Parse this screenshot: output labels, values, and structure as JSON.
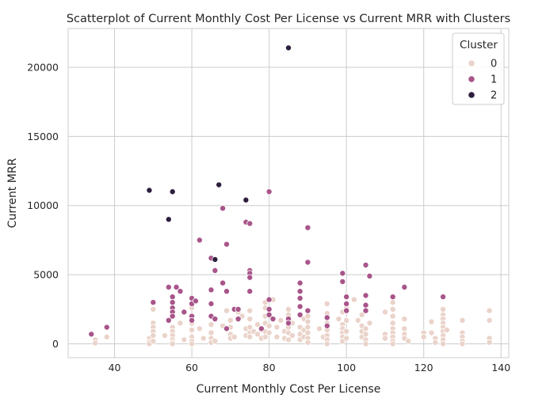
{
  "chart_data": {
    "type": "scatter",
    "title": "Scatterplot of Current Monthly Cost Per License vs Current MRR with Clusters",
    "xlabel": "Current Monthly Cost Per License",
    "ylabel": "Current MRR",
    "xlim": [
      28,
      142
    ],
    "ylim": [
      -1000,
      22800
    ],
    "xticks": [
      40,
      60,
      80,
      100,
      120,
      140
    ],
    "yticks": [
      0,
      5000,
      10000,
      15000,
      20000
    ],
    "xtick_labels": [
      "40",
      "60",
      "80",
      "100",
      "120",
      "140"
    ],
    "ytick_labels": [
      "0",
      "5000",
      "10000",
      "15000",
      "20000"
    ],
    "grid": true,
    "legend": {
      "title": "Cluster",
      "position": "top-right",
      "entries": [
        "0",
        "1",
        "2"
      ]
    },
    "colors": {
      "0": "#ead3ca",
      "1": "#a8558a",
      "2": "#2d1e3e"
    },
    "series": [
      {
        "name": "0",
        "points": [
          [
            35,
            300
          ],
          [
            35,
            50
          ],
          [
            38,
            500
          ],
          [
            49,
            400
          ],
          [
            49,
            150
          ],
          [
            49,
            0
          ],
          [
            50,
            1500
          ],
          [
            50,
            1200
          ],
          [
            50,
            900
          ],
          [
            50,
            600
          ],
          [
            50,
            200
          ],
          [
            50,
            2500
          ],
          [
            53,
            600
          ],
          [
            55,
            1200
          ],
          [
            55,
            900
          ],
          [
            55,
            600
          ],
          [
            55,
            300
          ],
          [
            55,
            100
          ],
          [
            55,
            0
          ],
          [
            57,
            1500
          ],
          [
            58,
            300
          ],
          [
            60,
            2600
          ],
          [
            60,
            1500
          ],
          [
            60,
            1000
          ],
          [
            60,
            500
          ],
          [
            60,
            200
          ],
          [
            60,
            0
          ],
          [
            62,
            1100
          ],
          [
            63,
            400
          ],
          [
            65,
            1400
          ],
          [
            65,
            800
          ],
          [
            65,
            400
          ],
          [
            65,
            100
          ],
          [
            66,
            200
          ],
          [
            68,
            1300
          ],
          [
            69,
            2400
          ],
          [
            70,
            1700
          ],
          [
            70,
            1200
          ],
          [
            70,
            700
          ],
          [
            70,
            400
          ],
          [
            71,
            500
          ],
          [
            72,
            2300
          ],
          [
            73,
            2000
          ],
          [
            74,
            1100
          ],
          [
            74,
            600
          ],
          [
            75,
            2400
          ],
          [
            75,
            1800
          ],
          [
            75,
            1200
          ],
          [
            75,
            800
          ],
          [
            75,
            500
          ],
          [
            76,
            900
          ],
          [
            77,
            1400
          ],
          [
            77,
            700
          ],
          [
            78,
            1000
          ],
          [
            78,
            400
          ],
          [
            79,
            3000
          ],
          [
            79,
            2600
          ],
          [
            79,
            2000
          ],
          [
            79,
            1500
          ],
          [
            79,
            900
          ],
          [
            79,
            500
          ],
          [
            80,
            1300
          ],
          [
            80,
            800
          ],
          [
            81,
            3200
          ],
          [
            82,
            1200
          ],
          [
            82,
            500
          ],
          [
            83,
            1700
          ],
          [
            84,
            900
          ],
          [
            84,
            400
          ],
          [
            85,
            2500
          ],
          [
            85,
            2100
          ],
          [
            85,
            1700
          ],
          [
            85,
            1200
          ],
          [
            85,
            800
          ],
          [
            85,
            300
          ],
          [
            86,
            1500
          ],
          [
            86,
            600
          ],
          [
            88,
            1200
          ],
          [
            88,
            700
          ],
          [
            88,
            300
          ],
          [
            89,
            1800
          ],
          [
            89,
            1000
          ],
          [
            89,
            500
          ],
          [
            90,
            2000
          ],
          [
            90,
            1600
          ],
          [
            90,
            1200
          ],
          [
            90,
            800
          ],
          [
            90,
            400
          ],
          [
            90,
            100
          ],
          [
            93,
            1100
          ],
          [
            94,
            500
          ],
          [
            95,
            2900
          ],
          [
            95,
            2200
          ],
          [
            95,
            1500
          ],
          [
            95,
            1000
          ],
          [
            95,
            600
          ],
          [
            95,
            300
          ],
          [
            95,
            0
          ],
          [
            98,
            1800
          ],
          [
            99,
            2300
          ],
          [
            99,
            1400
          ],
          [
            99,
            1100
          ],
          [
            99,
            800
          ],
          [
            99,
            500
          ],
          [
            99,
            200
          ],
          [
            100,
            2600
          ],
          [
            100,
            1700
          ],
          [
            100,
            900
          ],
          [
            100,
            400
          ],
          [
            102,
            3200
          ],
          [
            103,
            1700
          ],
          [
            104,
            2100
          ],
          [
            104,
            1300
          ],
          [
            104,
            900
          ],
          [
            104,
            500
          ],
          [
            105,
            1100
          ],
          [
            105,
            700
          ],
          [
            105,
            300
          ],
          [
            105,
            0
          ],
          [
            106,
            1500
          ],
          [
            110,
            2300
          ],
          [
            110,
            700
          ],
          [
            110,
            400
          ],
          [
            112,
            3000
          ],
          [
            112,
            2500
          ],
          [
            112,
            2000
          ],
          [
            112,
            1500
          ],
          [
            112,
            1100
          ],
          [
            112,
            800
          ],
          [
            112,
            500
          ],
          [
            112,
            200
          ],
          [
            112,
            0
          ],
          [
            115,
            1800
          ],
          [
            115,
            1100
          ],
          [
            115,
            700
          ],
          [
            115,
            400
          ],
          [
            116,
            200
          ],
          [
            120,
            800
          ],
          [
            120,
            500
          ],
          [
            122,
            1600
          ],
          [
            122,
            800
          ],
          [
            123,
            400
          ],
          [
            123,
            100
          ],
          [
            125,
            2500
          ],
          [
            125,
            2100
          ],
          [
            125,
            1800
          ],
          [
            125,
            1500
          ],
          [
            125,
            1200
          ],
          [
            125,
            900
          ],
          [
            125,
            600
          ],
          [
            125,
            300
          ],
          [
            125,
            0
          ],
          [
            126,
            1000
          ],
          [
            130,
            1700
          ],
          [
            130,
            800
          ],
          [
            130,
            500
          ],
          [
            130,
            200
          ],
          [
            130,
            0
          ],
          [
            137,
            2400
          ],
          [
            137,
            1700
          ],
          [
            137,
            400
          ],
          [
            137,
            100
          ]
        ]
      },
      {
        "name": "1",
        "points": [
          [
            34,
            700
          ],
          [
            38,
            1200
          ],
          [
            50,
            3000
          ],
          [
            54,
            4100
          ],
          [
            54,
            1700
          ],
          [
            55,
            3400
          ],
          [
            55,
            3000
          ],
          [
            55,
            2600
          ],
          [
            55,
            2300
          ],
          [
            55,
            2000
          ],
          [
            56,
            4100
          ],
          [
            57,
            3800
          ],
          [
            58,
            2300
          ],
          [
            60,
            3300
          ],
          [
            60,
            2900
          ],
          [
            60,
            2000
          ],
          [
            60,
            1700
          ],
          [
            61,
            3100
          ],
          [
            62,
            7500
          ],
          [
            65,
            6200
          ],
          [
            65,
            3900
          ],
          [
            65,
            2900
          ],
          [
            65,
            2000
          ],
          [
            66,
            5300
          ],
          [
            66,
            1800
          ],
          [
            68,
            9800
          ],
          [
            68,
            4400
          ],
          [
            69,
            7200
          ],
          [
            69,
            3800
          ],
          [
            69,
            1100
          ],
          [
            71,
            2500
          ],
          [
            72,
            2500
          ],
          [
            72,
            1800
          ],
          [
            74,
            8800
          ],
          [
            75,
            8700
          ],
          [
            75,
            5300
          ],
          [
            75,
            5100
          ],
          [
            75,
            4800
          ],
          [
            75,
            3800
          ],
          [
            78,
            1100
          ],
          [
            80,
            11000
          ],
          [
            80,
            3200
          ],
          [
            80,
            2500
          ],
          [
            80,
            2100
          ],
          [
            81,
            1800
          ],
          [
            85,
            1800
          ],
          [
            85,
            1500
          ],
          [
            88,
            4400
          ],
          [
            88,
            3800
          ],
          [
            88,
            3300
          ],
          [
            88,
            2700
          ],
          [
            88,
            2100
          ],
          [
            90,
            8400
          ],
          [
            90,
            5900
          ],
          [
            90,
            2400
          ],
          [
            95,
            1900
          ],
          [
            95,
            1300
          ],
          [
            99,
            5100
          ],
          [
            99,
            4500
          ],
          [
            100,
            3400
          ],
          [
            100,
            2900
          ],
          [
            100,
            2400
          ],
          [
            105,
            5700
          ],
          [
            105,
            3500
          ],
          [
            105,
            2800
          ],
          [
            105,
            2400
          ],
          [
            106,
            4900
          ],
          [
            112,
            3400
          ],
          [
            115,
            4100
          ],
          [
            125,
            3400
          ]
        ]
      },
      {
        "name": "2",
        "points": [
          [
            49,
            11100
          ],
          [
            54,
            9000
          ],
          [
            55,
            11000
          ],
          [
            66,
            6100
          ],
          [
            67,
            11500
          ],
          [
            74,
            10400
          ],
          [
            85,
            21400
          ]
        ]
      }
    ]
  }
}
